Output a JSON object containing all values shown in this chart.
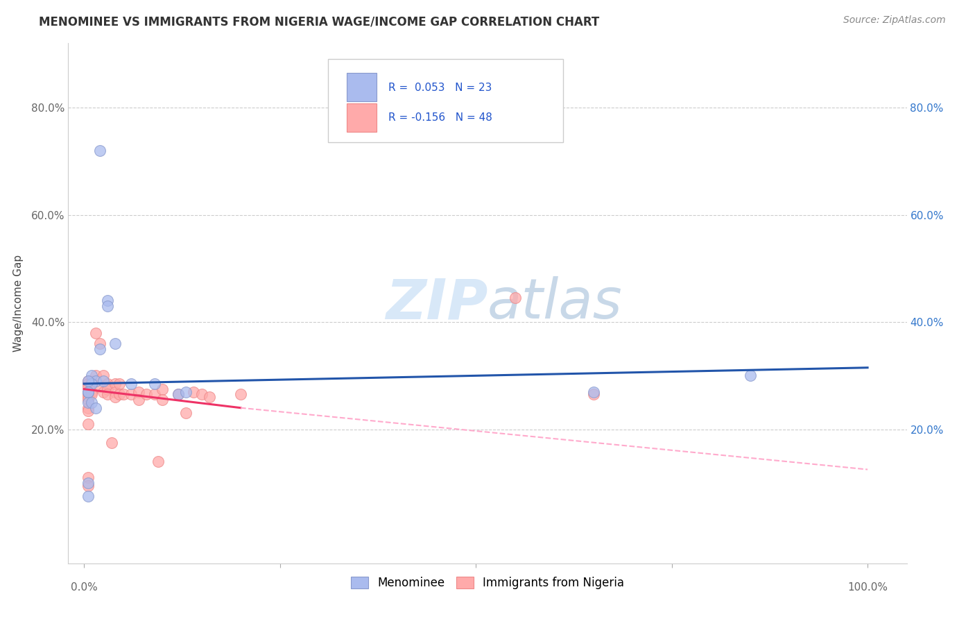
{
  "title": "MENOMINEE VS IMMIGRANTS FROM NIGERIA WAGE/INCOME GAP CORRELATION CHART",
  "source": "Source: ZipAtlas.com",
  "ylabel": "Wage/Income Gap",
  "ytick_vals": [
    20,
    40,
    60,
    80
  ],
  "ytick_labels": [
    "20.0%",
    "40.0%",
    "60.0%",
    "80.0%"
  ],
  "xtick_left_label": "0.0%",
  "xtick_right_label": "100.0%",
  "legend1_label": "Menominee",
  "legend2_label": "Immigrants from Nigeria",
  "blue_fill": "#AABBEE",
  "blue_edge": "#8899CC",
  "pink_fill": "#FFAAAA",
  "pink_edge": "#EE8888",
  "blue_line_color": "#2255AA",
  "pink_line_color": "#EE3366",
  "pink_dash_color": "#FFAACC",
  "watermark_color": "#D8E8F8",
  "menominee_x": [
    2,
    3,
    3,
    4,
    2,
    1,
    1.5,
    2.5,
    1,
    0.5,
    0.5,
    0.5,
    0.5,
    1,
    1.5,
    6,
    9,
    12,
    13,
    0.5,
    85,
    65,
    0.5
  ],
  "menominee_y": [
    72,
    44,
    43,
    36,
    35,
    30,
    29,
    29,
    28.5,
    29,
    27,
    27,
    25,
    25,
    24,
    28.5,
    28.5,
    26.5,
    27,
    10,
    30,
    27,
    7.5
  ],
  "nigeria_x": [
    0.5,
    0.5,
    0.5,
    0.5,
    0.5,
    0.5,
    0.5,
    0.5,
    0.5,
    0.5,
    1,
    1,
    1,
    1,
    1.5,
    1.5,
    2,
    2,
    2.5,
    2.5,
    3,
    3,
    3,
    3.5,
    4,
    4,
    4,
    4.5,
    4.5,
    5,
    6,
    7,
    7,
    8,
    9,
    9.5,
    10,
    10,
    12,
    13,
    14,
    15,
    16,
    20,
    55,
    65,
    0.5,
    0.5
  ],
  "nigeria_y": [
    29,
    28.5,
    28,
    27,
    26.5,
    26,
    25.5,
    24,
    23.5,
    21,
    29,
    28.5,
    27,
    26.5,
    38,
    30,
    36,
    28,
    30,
    27,
    28.5,
    27.5,
    26.5,
    17.5,
    28.5,
    27,
    26,
    28.5,
    26.5,
    26.5,
    26.5,
    27,
    25.5,
    26.5,
    26.5,
    14,
    27.5,
    25.5,
    26.5,
    23,
    27,
    26.5,
    26,
    26.5,
    44.5,
    26.5,
    11,
    9.5
  ],
  "xlim": [
    -2,
    105
  ],
  "ylim": [
    -5,
    92
  ],
  "blue_trend": [
    0,
    100,
    28.5,
    31.5
  ],
  "pink_solid_trend": [
    0,
    20,
    27.5,
    24.0
  ],
  "pink_dash_trend": [
    20,
    100,
    24.0,
    12.5
  ]
}
